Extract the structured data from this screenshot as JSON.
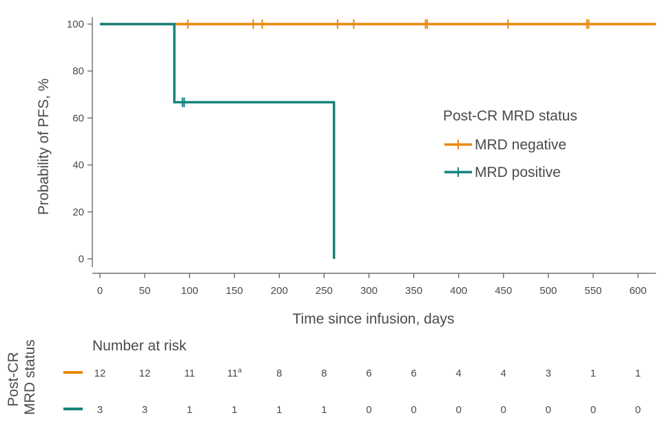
{
  "chart_data": {
    "type": "line",
    "title": "",
    "xlabel": "Time since infusion, days",
    "ylabel": "Probability of PFS, %",
    "xlim": [
      0,
      620
    ],
    "ylim": [
      0,
      100
    ],
    "x_ticks": [
      "0",
      "50",
      "100",
      "150",
      "200",
      "250",
      "300",
      "350",
      "400",
      "450",
      "500",
      "550",
      "600"
    ],
    "y_ticks": [
      "0",
      "20",
      "40",
      "60",
      "80",
      "100"
    ],
    "grid": false,
    "legend": {
      "title": "Post-CR MRD status",
      "placement": "right",
      "entries": [
        "MRD negative",
        "MRD positive"
      ]
    },
    "series": [
      {
        "name": "MRD negative",
        "color": "#E8890C",
        "steps": [
          [
            0,
            100
          ],
          [
            620,
            100
          ]
        ],
        "censor_marks": [
          98,
          171,
          181,
          265,
          283,
          363,
          365,
          455,
          543,
          545
        ]
      },
      {
        "name": "MRD positive",
        "color": "#13837B",
        "steps": [
          [
            0,
            100
          ],
          [
            83,
            100
          ],
          [
            83,
            66.7
          ],
          [
            261,
            66.7
          ],
          [
            261,
            0
          ]
        ],
        "censor_marks": [
          92,
          94
        ]
      }
    ],
    "number_at_risk": {
      "title": "Number at risk",
      "row_label": "Post-CR MRD status",
      "rows": [
        {
          "color": "#E8890C",
          "values": [
            "12",
            "12",
            "11",
            "11",
            "8",
            "8",
            "6",
            "6",
            "4",
            "4",
            "3",
            "1",
            "1"
          ],
          "footnotes": [
            "",
            "",
            "",
            "a",
            "",
            "",
            "",
            "",
            "",
            "",
            "",
            "",
            ""
          ]
        },
        {
          "color": "#13837B",
          "values": [
            "3",
            "3",
            "1",
            "1",
            "1",
            "1",
            "0",
            "0",
            "0",
            "0",
            "0",
            "0",
            "0"
          ],
          "footnotes": [
            "",
            "",
            "",
            "",
            "",
            "",
            "",
            "",
            "",
            "",
            "",
            "",
            ""
          ]
        }
      ]
    }
  }
}
